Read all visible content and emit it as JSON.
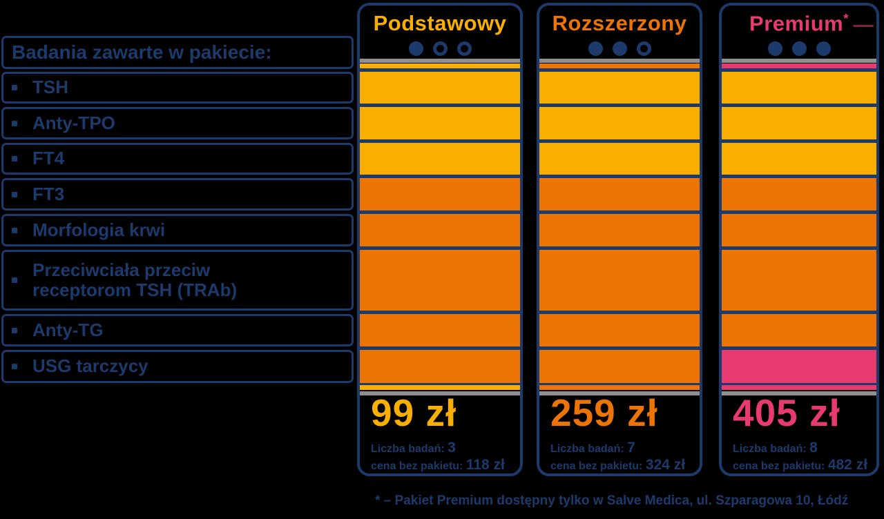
{
  "colors": {
    "navy": "#1C3A6B",
    "yellow": "#F8AF00",
    "orange": "#EC7405",
    "pink": "#E73A6E",
    "gray_line": "#8F8F8F",
    "background": "#000000"
  },
  "table": {
    "header": "Badania zawarte w pakiecie:",
    "bullet_icon": "square-bullet",
    "rows": [
      {
        "label": "TSH",
        "tier": "basic"
      },
      {
        "label": "Anty-TPO",
        "tier": "basic"
      },
      {
        "label": "FT4",
        "tier": "basic"
      },
      {
        "label": "FT3",
        "tier": "extended"
      },
      {
        "label": "Morfologia krwi",
        "tier": "extended"
      },
      {
        "label": "Przeciwciała przeciw receptorom TSH (TRAb)",
        "tier": "extended"
      },
      {
        "label": "Anty-TG",
        "tier": "extended"
      },
      {
        "label": "USG tarczycy",
        "tier": "premium",
        "striped": true
      }
    ]
  },
  "packages": [
    {
      "id": "podstawowy",
      "name": "Podstawowy",
      "suffix": "",
      "accent": "#F8AF00",
      "dots_filled": 1,
      "dots_total": 3,
      "price": "99 zł",
      "tests_count_label": "Liczba badań:",
      "tests_count": "3",
      "no_package_label": "cena bez pakietu:",
      "no_package_price": "118 zł"
    },
    {
      "id": "rozszerzony",
      "name": "Rozszerzony",
      "suffix": "",
      "accent": "#EC7405",
      "dots_filled": 2,
      "dots_total": 3,
      "price": "259 zł",
      "tests_count_label": "Liczba badań:",
      "tests_count": "7",
      "no_package_label": "cena bez pakietu:",
      "no_package_price": "324 zł"
    },
    {
      "id": "premium",
      "name": "Premium",
      "suffix": "*",
      "accent": "#E73A6E",
      "dots_filled": 3,
      "dots_total": 3,
      "price": "405 zł",
      "tests_count_label": "Liczba badań:",
      "tests_count": "8",
      "no_package_label": "cena bez pakietu:",
      "no_package_price": "482 zł"
    }
  ],
  "footnote": "* – Pakiet Premium dostępny tylko w Salve Medica, ul. Szparagowa 10, Łódź"
}
